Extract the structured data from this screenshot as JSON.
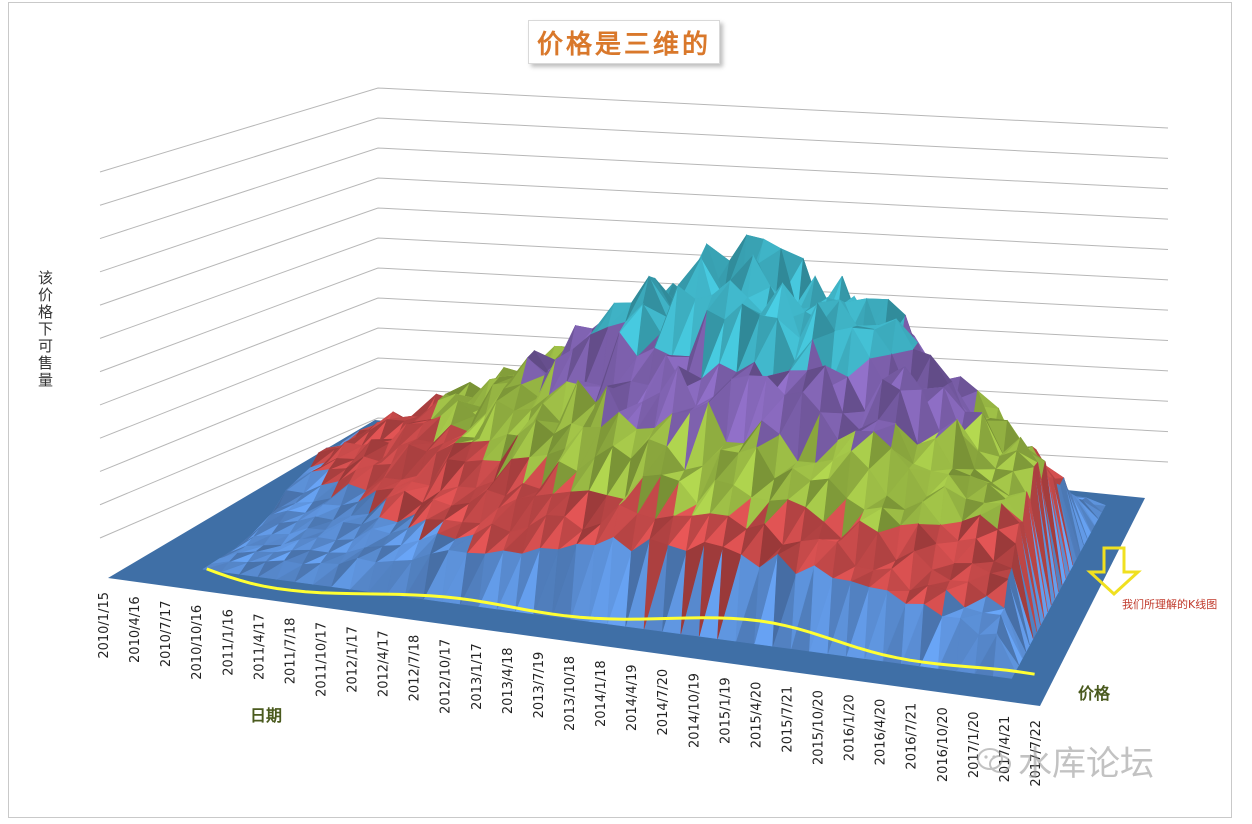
{
  "chart_data": {
    "type": "surface",
    "title": "价格是三维的",
    "xlabel": "日期",
    "ylabel": "价格",
    "zlabel": "该价格下可售量",
    "x_categories": [
      "2010/1/15",
      "2010/4/16",
      "2010/7/17",
      "2010/10/16",
      "2011/1/16",
      "2011/4/17",
      "2011/7/18",
      "2011/10/17",
      "2012/1/17",
      "2012/4/17",
      "2012/7/18",
      "2012/10/17",
      "2013/1/17",
      "2013/4/18",
      "2013/7/19",
      "2013/10/18",
      "2014/1/18",
      "2014/4/19",
      "2014/7/20",
      "2014/10/19",
      "2015/1/19",
      "2015/4/20",
      "2015/7/21",
      "2015/10/20",
      "2016/1/20",
      "2016/4/20",
      "2016/7/21",
      "2016/10/20",
      "2017/1/20",
      "2017/4/21",
      "2017/7/22"
    ],
    "z_bands": [
      {
        "color": "#5b8fd6"
      },
      {
        "color": "#c94b4b"
      },
      {
        "color": "#9bbb45"
      },
      {
        "color": "#7f62b0"
      },
      {
        "color": "#3fb3c6"
      }
    ],
    "gridlines": 12,
    "annotation": "我们所理解的K线图",
    "colors": {
      "floor": "#3f6fa6",
      "k_line": "#ffff33",
      "arrow": "#f0e020"
    }
  },
  "watermark": {
    "text": "水库论坛",
    "icon": "wechat-icon"
  }
}
